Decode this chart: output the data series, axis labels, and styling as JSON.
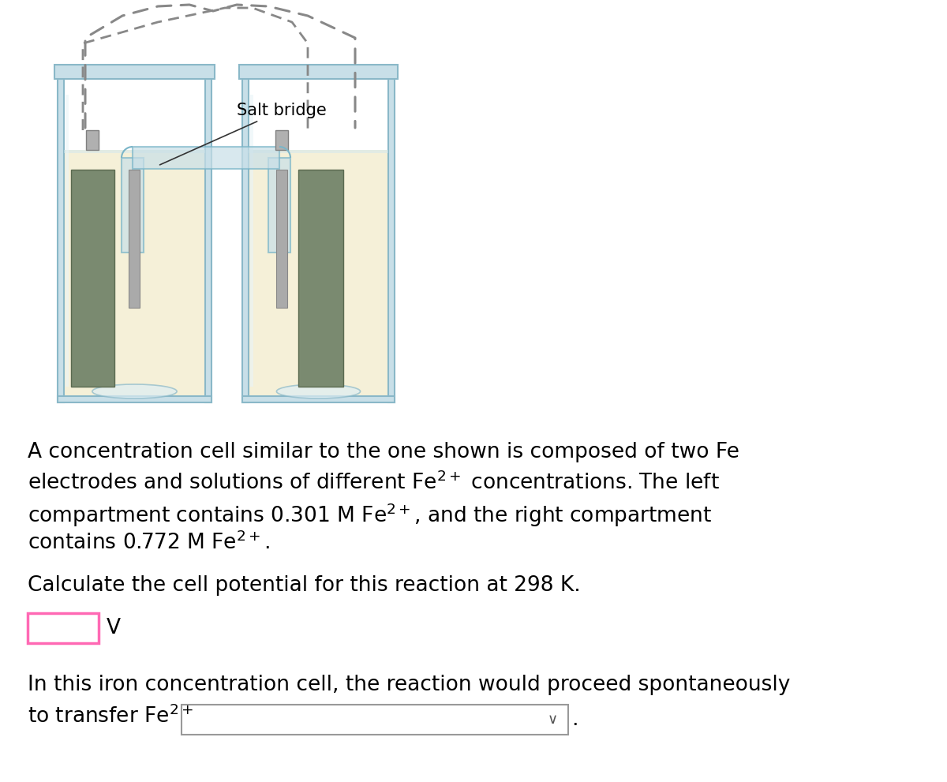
{
  "background_color": "#ffffff",
  "text_color": "#000000",
  "font_size_body": 19,
  "font_family": "DejaVu Sans",
  "line1": "A concentration cell similar to the one shown is composed of two Fe",
  "line2": "electrodes and solutions of different $\\mathregular{Fe^{2+}}$ concentrations. The left",
  "line3": "compartment contains 0.301 M $\\mathregular{Fe^{2+}}$, and the right compartment",
  "line4": "contains 0.772 M $\\mathregular{Fe^{2+}}$.",
  "line5": "Calculate the cell potential for this reaction at 298 K.",
  "line6": "In this iron concentration cell, the reaction would proceed spontaneously",
  "line7": "to transfer $\\mathregular{Fe^{2+}}$",
  "unit_label": "V",
  "salt_bridge_label": "Salt bridge",
  "input_box_color": "#ff69b4",
  "dropdown_border_color": "#999999",
  "liquid_color": "#f5f0d8",
  "glass_color_light": "#c8dfe8",
  "glass_color_dark": "#8ab8c8",
  "electrode_color": "#7a8a70",
  "wire_color": "#999999",
  "salt_bridge_color": "#c8dfe8"
}
